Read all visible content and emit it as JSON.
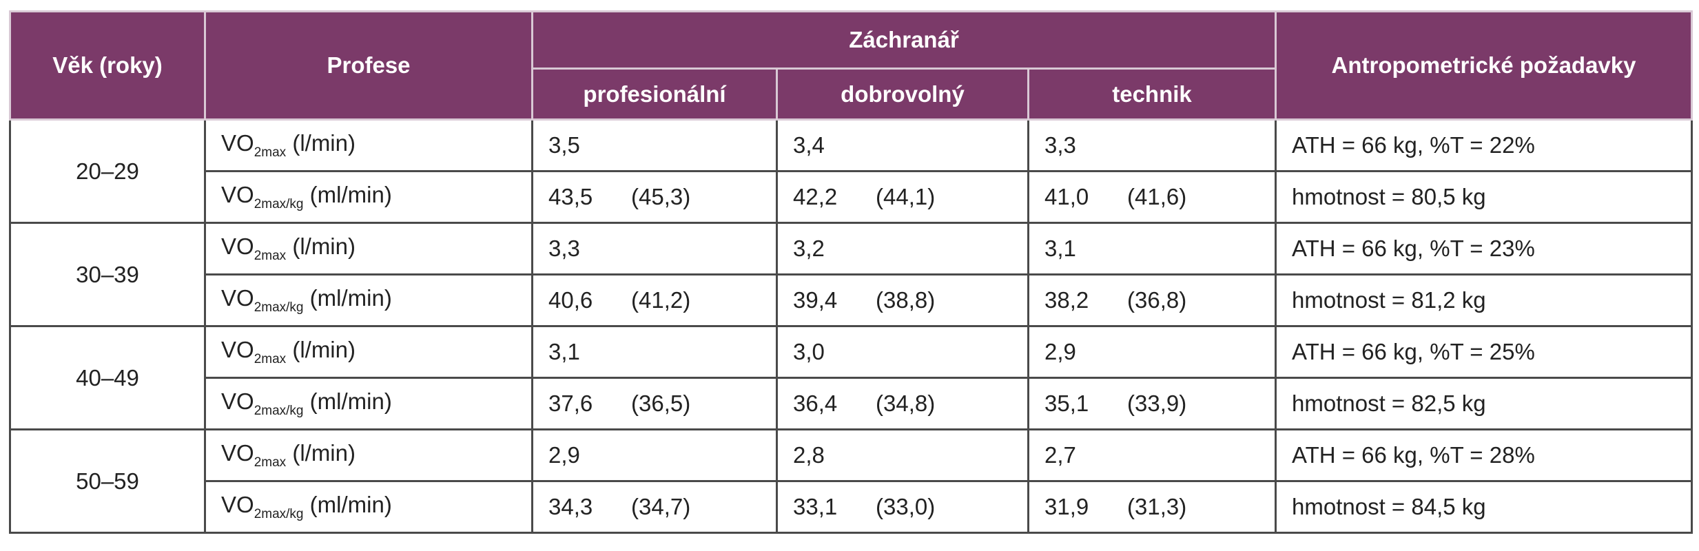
{
  "header": {
    "age": "Věk (roky)",
    "profession": "Profese",
    "group": "Záchranář",
    "subgroups": [
      "profesionální",
      "dobrovolný",
      "technik"
    ],
    "requirements": "Antropometrické požadavky"
  },
  "groups": [
    {
      "age": "20–29",
      "rows": [
        {
          "label": {
            "base": "VO",
            "sub": "2max",
            "unit": "(l/min)"
          },
          "cells": [
            [
              "3,5"
            ],
            [
              "3,4"
            ],
            [
              "3,3"
            ]
          ],
          "req": "ATH = 66 kg, %T = 22%"
        },
        {
          "label": {
            "base": "VO",
            "sub": "2max/kg",
            "unit": "(ml/min)"
          },
          "cells": [
            [
              "43,5",
              "(45,3)"
            ],
            [
              "42,2",
              "(44,1)"
            ],
            [
              "41,0",
              "(41,6)"
            ]
          ],
          "req": "hmotnost = 80,5 kg"
        }
      ]
    },
    {
      "age": "30–39",
      "rows": [
        {
          "label": {
            "base": "VO",
            "sub": "2max",
            "unit": "(l/min)"
          },
          "cells": [
            [
              "3,3"
            ],
            [
              "3,2"
            ],
            [
              "3,1"
            ]
          ],
          "req": "ATH = 66 kg, %T = 23%"
        },
        {
          "label": {
            "base": "VO",
            "sub": "2max/kg",
            "unit": "(ml/min)"
          },
          "cells": [
            [
              "40,6",
              "(41,2)"
            ],
            [
              "39,4",
              "(38,8)"
            ],
            [
              "38,2",
              "(36,8)"
            ]
          ],
          "req": "hmotnost = 81,2 kg"
        }
      ]
    },
    {
      "age": "40–49",
      "rows": [
        {
          "label": {
            "base": "VO",
            "sub": "2max",
            "unit": "(l/min)"
          },
          "cells": [
            [
              "3,1"
            ],
            [
              "3,0"
            ],
            [
              "2,9"
            ]
          ],
          "req": "ATH = 66 kg, %T = 25%"
        },
        {
          "label": {
            "base": "VO",
            "sub": "2max/kg",
            "unit": "(ml/min)"
          },
          "cells": [
            [
              "37,6",
              "(36,5)"
            ],
            [
              "36,4",
              "(34,8)"
            ],
            [
              "35,1",
              "(33,9)"
            ]
          ],
          "req": "hmotnost = 82,5 kg"
        }
      ]
    },
    {
      "age": "50–59",
      "rows": [
        {
          "label": {
            "base": "VO",
            "sub": "2max",
            "unit": "(l/min)"
          },
          "cells": [
            [
              "2,9"
            ],
            [
              "2,8"
            ],
            [
              "2,7"
            ]
          ],
          "req": "ATH = 66 kg, %T = 28%"
        },
        {
          "label": {
            "base": "VO",
            "sub": "2max/kg",
            "unit": "(ml/min)"
          },
          "cells": [
            [
              "34,3",
              "(34,7)"
            ],
            [
              "33,1",
              "(33,0)"
            ],
            [
              "31,9",
              "(31,3)"
            ]
          ],
          "req": "hmotnost = 84,5 kg"
        }
      ]
    }
  ]
}
